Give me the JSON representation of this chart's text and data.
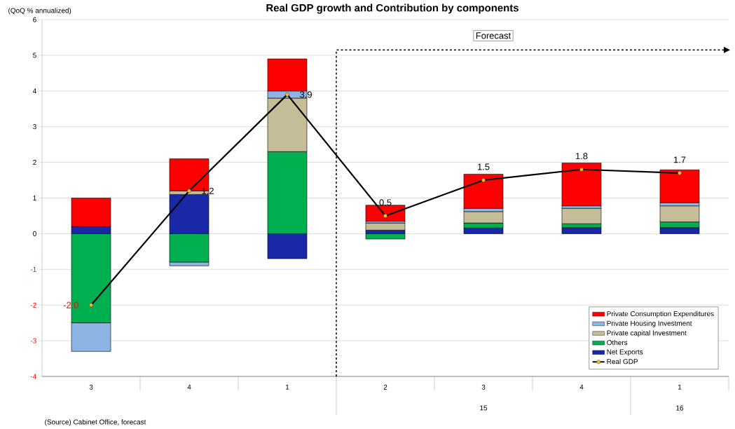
{
  "chart_data": {
    "type": "bar",
    "stacked": true,
    "title": "Real GDP growth and Contribution by components",
    "ylabel": "(QoQ % annualized)",
    "categories": [
      "3",
      "4",
      "1",
      "2",
      "3",
      "4",
      "1"
    ],
    "series": [
      {
        "name": "Net Exports",
        "color": "#1a27a6",
        "values": [
          0.2,
          1.1,
          -0.7,
          0.1,
          0.16,
          0.17,
          0.17
        ]
      },
      {
        "name": "Others",
        "color": "#00b050",
        "values": [
          -2.5,
          -0.8,
          2.3,
          -0.15,
          0.14,
          0.11,
          0.16
        ]
      },
      {
        "name": "Private capital Investment",
        "color": "#c4bd97",
        "values": [
          0.0,
          0.1,
          1.5,
          0.2,
          0.32,
          0.43,
          0.45
        ]
      },
      {
        "name": "Private Housing Investment",
        "color": "#8db4e2",
        "values": [
          -0.8,
          -0.1,
          0.2,
          0.05,
          0.09,
          0.07,
          0.09
        ]
      },
      {
        "name": "Private Consumption Expenditures",
        "color": "#ff0000",
        "values": [
          0.8,
          0.9,
          0.9,
          0.45,
          0.96,
          1.2,
          0.92
        ]
      },
      {
        "name": "Real GDP",
        "type": "line",
        "color": "#000000",
        "marker": "circle",
        "values": [
          -2.0,
          1.2,
          3.9,
          0.5,
          1.5,
          1.8,
          1.7
        ],
        "value_labels": [
          "-2.0",
          "1.2",
          "3.9",
          "0.5",
          "1.5",
          "1.8",
          "1.7"
        ]
      }
    ],
    "ylim": [
      -4,
      6
    ],
    "yticks": [
      -4,
      -3,
      -2,
      -1,
      0,
      1,
      2,
      3,
      4,
      5,
      6
    ],
    "grid": "y",
    "legend": "bottom right",
    "annotations": [
      "Forecast",
      "15",
      "16",
      "(Source) Cabinet Office, forecast"
    ]
  }
}
